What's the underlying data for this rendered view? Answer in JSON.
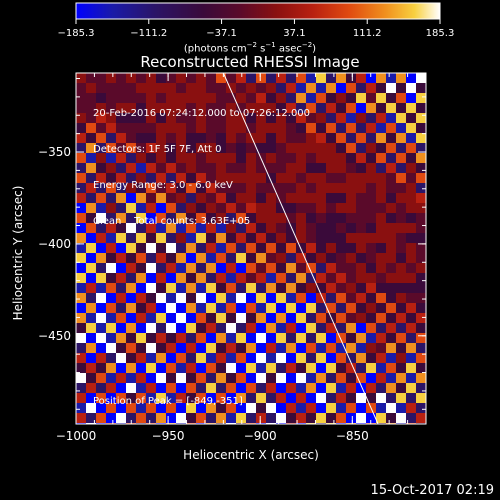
{
  "colorbar": {
    "tick_labels": [
      "−185.3",
      "−111.2",
      "−37.1",
      "37.1",
      "111.2",
      "185.3"
    ],
    "tick_values": [
      -185.3,
      -111.2,
      -37.1,
      37.1,
      111.2,
      185.3
    ],
    "range": [
      -185.3,
      185.3
    ],
    "unit_prefix": "(photons cm",
    "unit_sup1": "−2",
    "unit_mid": " s",
    "unit_sup2": "−1",
    "unit_mid2": " asec",
    "unit_sup3": "−2",
    "unit_suffix": ")"
  },
  "annotations": {
    "line1": "20-Feb-2016 07:24:12.000 to 07:26:12.000",
    "line2": "Detectors: 1F 5F 7F, Att 0",
    "line3": "Energy Range: 3.0 - 6.0 keV",
    "line4": "Clean    Total counts: 3.63E+05",
    "peak": "Position of Peak = [-849,-351]"
  },
  "footer": {
    "timestamp": "15-Oct-2017 02:19"
  },
  "colors": {
    "background": "#000000",
    "foreground": "#ffffff",
    "colormap": [
      "#0000ff",
      "#1a1aa8",
      "#2b1466",
      "#3a0a3a",
      "#5a0a2a",
      "#8a1010",
      "#b82010",
      "#e04a10",
      "#f0901e",
      "#f8d040",
      "#ffffff"
    ]
  },
  "chart_data": {
    "type": "heatmap",
    "title": "Reconstructed RHESSI Image",
    "xlabel": "Heliocentric X (arcsec)",
    "ylabel": "Heliocentric Y (arcsec)",
    "xlim": [
      -1000,
      -810
    ],
    "ylim": [
      -498,
      -307
    ],
    "x_ticks": [
      -1000,
      -950,
      -900,
      -850
    ],
    "x_tick_labels": [
      "−1000",
      "−950",
      "−900",
      "−850"
    ],
    "y_ticks": [
      -350,
      -400,
      -450
    ],
    "y_tick_labels": [
      "−350",
      "−400",
      "−450"
    ],
    "limb_line": {
      "x": [
        -920,
        -836
      ],
      "y": [
        -307,
        -498
      ]
    },
    "peak_position": {
      "x": -849,
      "y": -351
    }
  }
}
